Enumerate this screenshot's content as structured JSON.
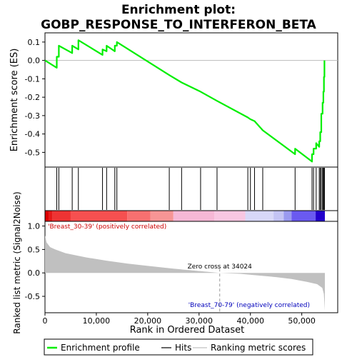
{
  "chart_data": {
    "type": "line",
    "title": "Enrichment plot:\nGOBP_RESPONSE_TO_INTERFERON_BETA",
    "title_lines": [
      "Enrichment plot:",
      "GOBP_RESPONSE_TO_INTERFERON_BETA"
    ],
    "n_genes": 54500,
    "es_panel": {
      "ylabel": "Enrichment score (ES)",
      "ylim": [
        -0.58,
        0.15
      ],
      "yticks": [
        0.1,
        0.0,
        -0.1,
        -0.2,
        -0.3,
        -0.4,
        -0.5
      ],
      "ytick_labels": [
        "0.1",
        "0.0",
        "-0.1",
        "-0.2",
        "-0.3",
        "-0.4",
        "-0.5"
      ],
      "line_color": "#00ee00",
      "es_points": [
        [
          0,
          0.0
        ],
        [
          2300,
          -0.04
        ],
        [
          2300,
          0.02
        ],
        [
          2700,
          0.02
        ],
        [
          2700,
          0.08
        ],
        [
          5300,
          0.04
        ],
        [
          5300,
          0.08
        ],
        [
          6500,
          0.06
        ],
        [
          6500,
          0.11
        ],
        [
          11200,
          0.03
        ],
        [
          11200,
          0.06
        ],
        [
          12000,
          0.05
        ],
        [
          12000,
          0.08
        ],
        [
          13600,
          0.05
        ],
        [
          13600,
          0.08
        ],
        [
          14000,
          0.08
        ],
        [
          14000,
          0.1
        ],
        [
          24200,
          -0.08
        ],
        [
          26600,
          -0.12
        ],
        [
          30300,
          -0.17
        ],
        [
          33500,
          -0.22
        ],
        [
          39500,
          -0.31
        ],
        [
          40000,
          -0.32
        ],
        [
          40800,
          -0.33
        ],
        [
          42400,
          -0.38
        ],
        [
          48700,
          -0.51
        ],
        [
          48700,
          -0.48
        ],
        [
          52000,
          -0.55
        ],
        [
          52000,
          -0.51
        ],
        [
          52300,
          -0.51
        ],
        [
          52300,
          -0.48
        ],
        [
          52800,
          -0.48
        ],
        [
          52800,
          -0.45
        ],
        [
          53400,
          -0.47
        ],
        [
          53400,
          -0.44
        ],
        [
          53600,
          -0.44
        ],
        [
          53600,
          -0.39
        ],
        [
          53800,
          -0.39
        ],
        [
          53800,
          -0.29
        ],
        [
          54050,
          -0.29
        ],
        [
          54050,
          -0.23
        ],
        [
          54200,
          -0.23
        ],
        [
          54200,
          -0.17
        ],
        [
          54320,
          -0.17
        ],
        [
          54320,
          -0.09
        ],
        [
          54420,
          -0.09
        ],
        [
          54420,
          0.0
        ]
      ]
    },
    "hits_panel": {
      "hit_positions": [
        2300,
        2700,
        5300,
        6500,
        11200,
        12000,
        13600,
        14000,
        24200,
        26600,
        30300,
        33500,
        39500,
        40000,
        40800,
        42400,
        48700,
        52000,
        52300,
        52800,
        53400,
        53600,
        53800,
        54050,
        54200,
        54320,
        54420
      ]
    },
    "ranking_panel": {
      "ylabel": "Ranked list metric (Signal2Noise)",
      "ylim": [
        -0.85,
        1.1
      ],
      "yticks": [
        1.0,
        0.5,
        0.0,
        -0.5
      ],
      "ytick_labels": [
        "1.0",
        "0.5",
        "0.0",
        "-0.5"
      ],
      "fill_color": "#c0c0c0",
      "metric_points": [
        [
          0,
          0.8
        ],
        [
          300,
          0.65
        ],
        [
          1000,
          0.55
        ],
        [
          2000,
          0.5
        ],
        [
          4000,
          0.42
        ],
        [
          8000,
          0.33
        ],
        [
          12000,
          0.26
        ],
        [
          16000,
          0.2
        ],
        [
          20000,
          0.15
        ],
        [
          25000,
          0.09
        ],
        [
          30000,
          0.04
        ],
        [
          34024,
          0.0
        ],
        [
          38000,
          -0.02
        ],
        [
          42000,
          -0.06
        ],
        [
          45000,
          -0.09
        ],
        [
          48000,
          -0.13
        ],
        [
          51000,
          -0.19
        ],
        [
          53000,
          -0.24
        ],
        [
          54000,
          -0.32
        ],
        [
          54300,
          -0.45
        ],
        [
          54500,
          -0.8
        ]
      ],
      "zero_cross_label": "Zero cross at 34024",
      "zero_cross_rank": 34024,
      "pos_label": "'Breast_30-39' (positively correlated)",
      "neg_label": "'Breast_70-79' (negatively correlated)",
      "pos_label_color": "#cc0000",
      "neg_label_color": "#0000bb"
    },
    "x_axis": {
      "xlabel": "Rank in Ordered Dataset",
      "xlim": [
        0,
        57000
      ],
      "xticks": [
        0,
        10000,
        20000,
        30000,
        40000,
        50000
      ],
      "xtick_labels": [
        "0",
        "10,000",
        "20,000",
        "30,000",
        "40,000",
        "50,000"
      ]
    },
    "color_bar": [
      {
        "from": 0,
        "to": 700,
        "color": "#dd0000"
      },
      {
        "from": 700,
        "to": 1500,
        "color": "#e51919"
      },
      {
        "from": 1500,
        "to": 5000,
        "color": "#ee3333"
      },
      {
        "from": 5000,
        "to": 16000,
        "color": "#f65050"
      },
      {
        "from": 16000,
        "to": 20500,
        "color": "#f77070"
      },
      {
        "from": 20500,
        "to": 25000,
        "color": "#f79595"
      },
      {
        "from": 25000,
        "to": 33000,
        "color": "#f6b8d6"
      },
      {
        "from": 33000,
        "to": 39000,
        "color": "#f8c7e2"
      },
      {
        "from": 39000,
        "to": 44500,
        "color": "#d8d8f8"
      },
      {
        "from": 44500,
        "to": 46500,
        "color": "#c4c4f4"
      },
      {
        "from": 46500,
        "to": 48000,
        "color": "#9a9af0"
      },
      {
        "from": 48000,
        "to": 52700,
        "color": "#6a5af0"
      },
      {
        "from": 52700,
        "to": 54500,
        "color": "#2200cc"
      }
    ],
    "legend": {
      "placement": "bottom",
      "entries": [
        "Enrichment profile",
        "Hits",
        "Ranking metric scores"
      ]
    }
  }
}
